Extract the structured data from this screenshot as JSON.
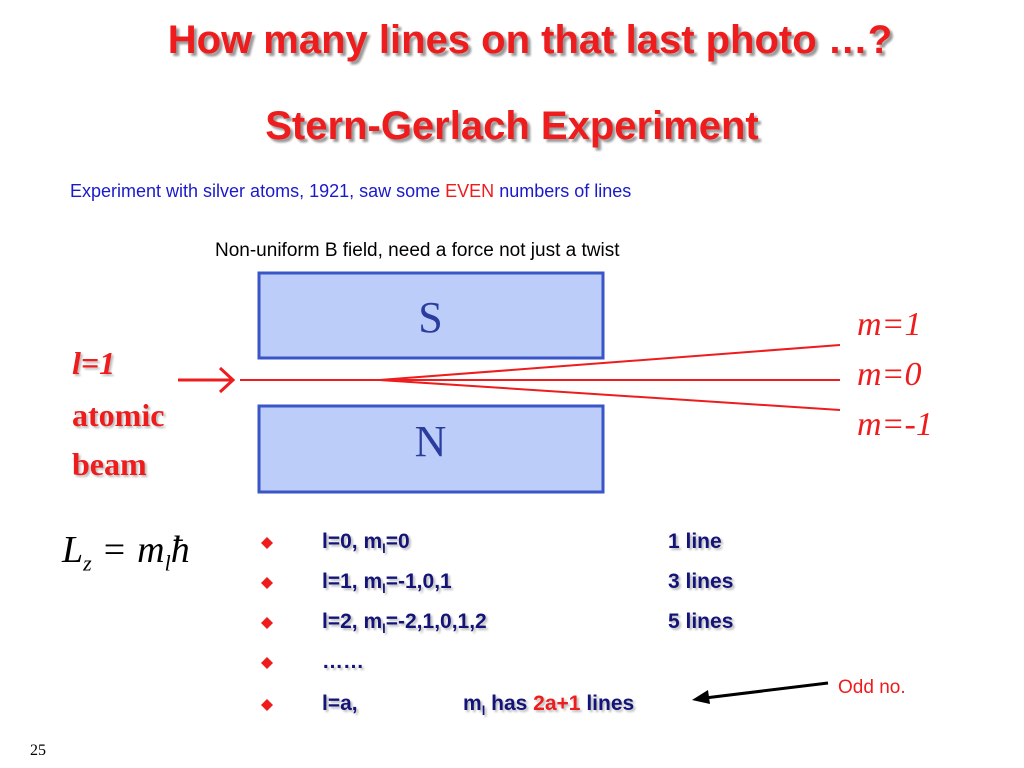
{
  "header": {
    "title": "How many lines on that last photo …?",
    "subtitle": "Stern-Gerlach Experiment"
  },
  "intro": {
    "before": "Experiment with silver atoms, 1921, saw some ",
    "highlight": "EVEN",
    "after": " numbers of lines"
  },
  "diagram": {
    "caption": "Non-uniform B field, need a force not just a twist",
    "magnets": [
      "S",
      "N"
    ],
    "beam_label": [
      "l=1",
      "atomic",
      "beam"
    ],
    "states": [
      "m=1",
      "m=0",
      "m=-1"
    ]
  },
  "formula": {
    "L": "L",
    "L_sub": "z",
    "equals": "=",
    "m": "m",
    "m_sub": "l",
    "hbar": "ħ"
  },
  "bullets": [
    {
      "text": "l=0, m",
      "sub": "l",
      "tail": "=0",
      "result": "1 line"
    },
    {
      "text": "l=1, m",
      "sub": "l",
      "tail": "=-1,0,1",
      "result": "3 lines"
    },
    {
      "text": "l=2, m",
      "sub": "l",
      "tail": "=-2,1,0,1,2",
      "result": "5 lines"
    },
    {
      "text": "……"
    },
    {
      "text": "l=a,",
      "mid": "m",
      "sub": "l",
      "tail": " has ",
      "highlight": "2a+1",
      "result": " lines"
    }
  ],
  "note": "Odd no.",
  "page_number": "25"
}
